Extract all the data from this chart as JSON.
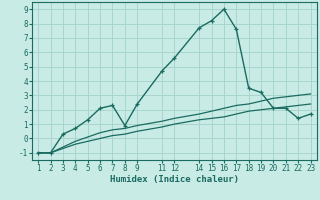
{
  "xlabel": "Humidex (Indice chaleur)",
  "bg_color": "#c8ebe6",
  "grid_color": "#a8d5ce",
  "line_color": "#1a6b60",
  "xlim": [
    0.5,
    23.5
  ],
  "ylim": [
    -1.5,
    9.5
  ],
  "xticks": [
    1,
    2,
    3,
    4,
    5,
    6,
    7,
    8,
    9,
    11,
    12,
    14,
    15,
    16,
    17,
    18,
    19,
    20,
    21,
    22,
    23
  ],
  "yticks": [
    -1,
    0,
    1,
    2,
    3,
    4,
    5,
    6,
    7,
    8,
    9
  ],
  "series1_x": [
    1,
    2,
    3,
    4,
    5,
    6,
    7,
    8,
    9,
    11,
    12,
    14,
    15,
    16,
    17,
    18,
    19,
    20,
    21,
    22,
    23
  ],
  "series1_y": [
    -1.0,
    -1.0,
    0.3,
    0.7,
    1.3,
    2.1,
    2.3,
    0.9,
    2.4,
    4.7,
    5.6,
    7.7,
    8.2,
    9.0,
    7.6,
    3.5,
    3.2,
    2.1,
    2.1,
    1.4,
    1.7
  ],
  "series2_x": [
    1,
    2,
    3,
    4,
    5,
    6,
    7,
    8,
    9,
    11,
    12,
    14,
    15,
    16,
    17,
    18,
    19,
    20,
    21,
    22,
    23
  ],
  "series2_y": [
    -1.0,
    -1.0,
    -0.7,
    -0.4,
    -0.2,
    0.0,
    0.2,
    0.3,
    0.5,
    0.8,
    1.0,
    1.3,
    1.4,
    1.5,
    1.7,
    1.9,
    2.0,
    2.1,
    2.2,
    2.3,
    2.4
  ],
  "series3_x": [
    1,
    2,
    3,
    4,
    5,
    6,
    7,
    8,
    9,
    11,
    12,
    14,
    15,
    16,
    17,
    18,
    19,
    20,
    21,
    22,
    23
  ],
  "series3_y": [
    -1.0,
    -1.0,
    -0.6,
    -0.2,
    0.1,
    0.4,
    0.6,
    0.7,
    0.9,
    1.2,
    1.4,
    1.7,
    1.9,
    2.1,
    2.3,
    2.4,
    2.6,
    2.8,
    2.9,
    3.0,
    3.1
  ]
}
